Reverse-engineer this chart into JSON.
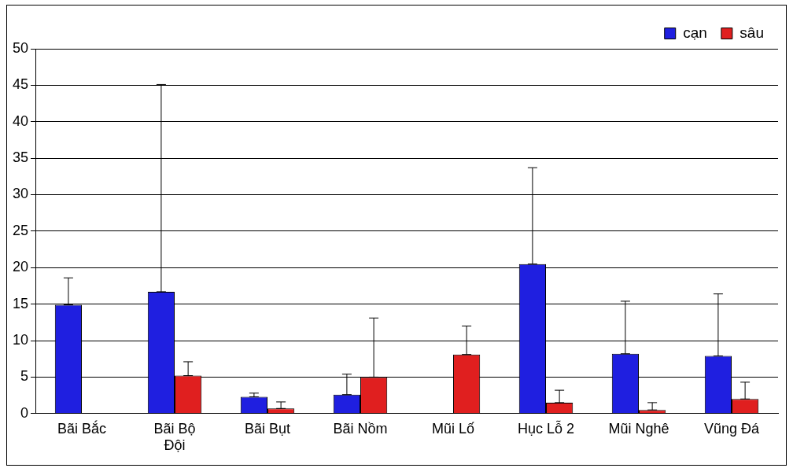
{
  "chart_data": {
    "type": "bar",
    "categories": [
      "Bãi Bắc",
      "Bãi Bộ Đội",
      "Bãi Bụt",
      "Bãi Nồm",
      "Mũi Lố",
      "Hục Lỗ 2",
      "Mũi Nghê",
      "Vũng Đá"
    ],
    "series": [
      {
        "name": "cạn",
        "color": "#1f1fe0",
        "values": [
          14.9,
          16.7,
          2.3,
          2.6,
          null,
          20.5,
          8.2,
          7.9
        ],
        "errors": [
          [
            14.9,
            18.6
          ],
          [
            16.7,
            45.1
          ],
          [
            2.3,
            2.8
          ],
          [
            2.6,
            5.4
          ],
          null,
          [
            20.5,
            33.7
          ],
          [
            8.2,
            15.4
          ],
          [
            7.9,
            16.4
          ]
        ]
      },
      {
        "name": "sâu",
        "color": "#e01f1f",
        "values": [
          null,
          5.2,
          0.7,
          5.0,
          8.1,
          1.5,
          0.5,
          2.0
        ],
        "errors": [
          null,
          [
            5.2,
            7.1
          ],
          [
            0.7,
            1.6
          ],
          [
            5.0,
            13.1
          ],
          [
            8.1,
            12.0
          ],
          [
            1.5,
            3.2
          ],
          [
            0.5,
            1.5
          ],
          [
            2.0,
            4.3
          ]
        ]
      }
    ],
    "ylim": [
      0,
      50
    ],
    "yticks": [
      0,
      5,
      10,
      15,
      20,
      25,
      30,
      35,
      40,
      45,
      50
    ],
    "grid": "y",
    "legend": "top right"
  }
}
